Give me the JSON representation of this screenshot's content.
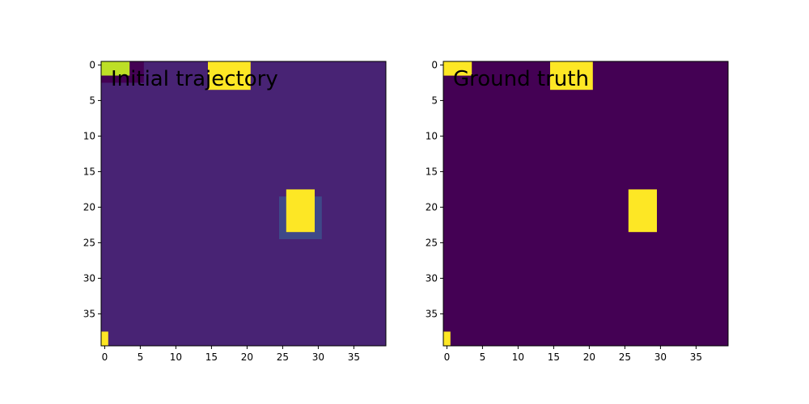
{
  "figure": {
    "background": "#ffffff"
  },
  "chart_data": [
    {
      "type": "heatmap",
      "title": "Initial trajectory",
      "xlabel": "",
      "ylabel": "",
      "grid": false,
      "xlim": [
        -0.5,
        39.5
      ],
      "ylim": [
        39.5,
        -0.5
      ],
      "xticks": [
        0,
        5,
        10,
        15,
        20,
        25,
        30,
        35
      ],
      "yticks": [
        0,
        5,
        10,
        15,
        20,
        25,
        30,
        35
      ],
      "background_color": "#482374",
      "regions": [
        {
          "x0": 0,
          "x1": 4,
          "y0": 0,
          "y1": 1,
          "color": "#bddf26"
        },
        {
          "x0": 4,
          "x1": 5,
          "y0": 0,
          "y1": 1,
          "color": "#440154"
        },
        {
          "x0": 0,
          "x1": 5,
          "y0": 2,
          "y1": 2,
          "color": "#440154"
        },
        {
          "x0": 15,
          "x1": 20,
          "y0": 0,
          "y1": 3,
          "color": "#fde725"
        },
        {
          "x0": 25,
          "x1": 30,
          "y0": 19,
          "y1": 24,
          "color": "#3e4989"
        },
        {
          "x0": 26,
          "x1": 29,
          "y0": 18,
          "y1": 23,
          "color": "#fde725"
        },
        {
          "x0": 0,
          "x1": 0,
          "y0": 38,
          "y1": 39,
          "color": "#fde725"
        }
      ]
    },
    {
      "type": "heatmap",
      "title": "Ground truth",
      "xlabel": "",
      "ylabel": "",
      "grid": false,
      "xlim": [
        -0.5,
        39.5
      ],
      "ylim": [
        39.5,
        -0.5
      ],
      "xticks": [
        0,
        5,
        10,
        15,
        20,
        25,
        30,
        35
      ],
      "yticks": [
        0,
        5,
        10,
        15,
        20,
        25,
        30,
        35
      ],
      "background_color": "#440154",
      "regions": [
        {
          "x0": 0,
          "x1": 3,
          "y0": 0,
          "y1": 1,
          "color": "#fde725"
        },
        {
          "x0": 15,
          "x1": 20,
          "y0": 0,
          "y1": 3,
          "color": "#fde725"
        },
        {
          "x0": 26,
          "x1": 29,
          "y0": 18,
          "y1": 23,
          "color": "#fde725"
        },
        {
          "x0": 0,
          "x1": 0,
          "y0": 38,
          "y1": 39,
          "color": "#fde725"
        }
      ]
    }
  ]
}
